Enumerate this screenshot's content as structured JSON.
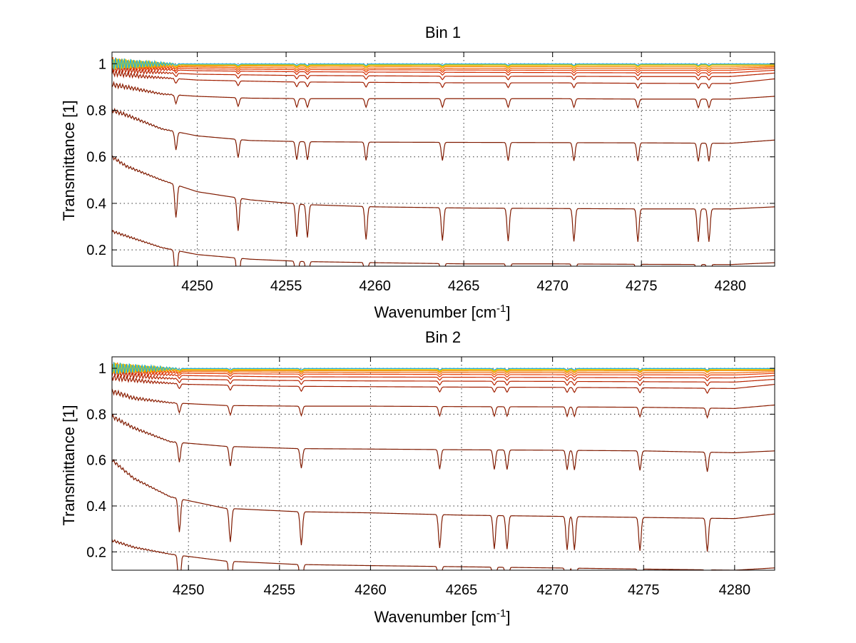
{
  "chart_data": [
    {
      "type": "line",
      "title": "Bin 1",
      "xlabel": "Wavenumber [cm",
      "xlabel_sup": "-1",
      "xlabel_end": "]",
      "ylabel": "Transmittance [1]",
      "xlim": [
        4245.2,
        4282.5
      ],
      "ylim": [
        0.13,
        1.05
      ],
      "xticks": [
        4250,
        4255,
        4260,
        4265,
        4270,
        4275,
        4280
      ],
      "xtick_labels": [
        "4250",
        "4255",
        "4260",
        "4265",
        "4270",
        "4275",
        "4280"
      ],
      "yticks": [
        0.2,
        0.4,
        0.6,
        0.8,
        1.0
      ],
      "ytick_labels": [
        "0.2",
        "0.4",
        "0.6",
        "0.8",
        "1"
      ],
      "grid": true,
      "absorption_lines": [
        4248.8,
        4252.3,
        4255.6,
        4256.2,
        4259.5,
        4263.8,
        4267.5,
        4271.2,
        4274.8,
        4278.2,
        4278.8
      ],
      "series": [
        {
          "color": "#7f1a00",
          "values": [
            [
              4245.2,
              0.28
            ],
            [
              4246,
              0.26
            ],
            [
              4248,
              0.21
            ],
            [
              4250,
              0.18
            ],
            [
              4253,
              0.16
            ],
            [
              4256,
              0.15
            ],
            [
              4260,
              0.145
            ],
            [
              4265,
              0.14
            ],
            [
              4270,
              0.14
            ],
            [
              4275,
              0.138
            ],
            [
              4280,
              0.137
            ],
            [
              4282.5,
              0.145
            ]
          ]
        },
        {
          "color": "#7f1a00",
          "values": [
            [
              4245.2,
              0.6
            ],
            [
              4246,
              0.56
            ],
            [
              4248,
              0.5
            ],
            [
              4250,
              0.45
            ],
            [
              4253,
              0.415
            ],
            [
              4256,
              0.395
            ],
            [
              4260,
              0.385
            ],
            [
              4265,
              0.38
            ],
            [
              4270,
              0.378
            ],
            [
              4275,
              0.376
            ],
            [
              4280,
              0.376
            ],
            [
              4282.5,
              0.385
            ]
          ]
        },
        {
          "color": "#7f1a00",
          "values": [
            [
              4245.2,
              0.8
            ],
            [
              4246,
              0.78
            ],
            [
              4248,
              0.72
            ],
            [
              4250,
              0.69
            ],
            [
              4253,
              0.67
            ],
            [
              4256,
              0.665
            ],
            [
              4260,
              0.663
            ],
            [
              4265,
              0.662
            ],
            [
              4270,
              0.661
            ],
            [
              4275,
              0.66
            ],
            [
              4280,
              0.658
            ],
            [
              4282.5,
              0.672
            ]
          ]
        },
        {
          "color": "#8a1c00",
          "values": [
            [
              4245.2,
              0.91
            ],
            [
              4246,
              0.9
            ],
            [
              4248,
              0.87
            ],
            [
              4250,
              0.86
            ],
            [
              4253,
              0.852
            ],
            [
              4256,
              0.85
            ],
            [
              4260,
              0.85
            ],
            [
              4265,
              0.85
            ],
            [
              4270,
              0.85
            ],
            [
              4275,
              0.848
            ],
            [
              4280,
              0.848
            ],
            [
              4282.5,
              0.86
            ]
          ]
        },
        {
          "color": "#a01e00",
          "values": [
            [
              4245.2,
              0.96
            ],
            [
              4247,
              0.945
            ],
            [
              4250,
              0.93
            ],
            [
              4255,
              0.922
            ],
            [
              4260,
              0.92
            ],
            [
              4265,
              0.918
            ],
            [
              4270,
              0.918
            ],
            [
              4275,
              0.916
            ],
            [
              4280,
              0.915
            ],
            [
              4282.5,
              0.935
            ]
          ]
        },
        {
          "color": "#b82400",
          "values": [
            [
              4245.2,
              0.98
            ],
            [
              4247,
              0.965
            ],
            [
              4250,
              0.955
            ],
            [
              4255,
              0.95
            ],
            [
              4260,
              0.948
            ],
            [
              4265,
              0.946
            ],
            [
              4270,
              0.946
            ],
            [
              4275,
              0.945
            ],
            [
              4280,
              0.945
            ],
            [
              4282.5,
              0.96
            ]
          ]
        },
        {
          "color": "#d02a00",
          "values": [
            [
              4245.2,
              0.99
            ],
            [
              4247,
              0.978
            ],
            [
              4250,
              0.97
            ],
            [
              4255,
              0.966
            ],
            [
              4260,
              0.964
            ],
            [
              4265,
              0.963
            ],
            [
              4270,
              0.962
            ],
            [
              4275,
              0.961
            ],
            [
              4280,
              0.961
            ],
            [
              4282.5,
              0.972
            ]
          ]
        },
        {
          "color": "#e83a00",
          "values": [
            [
              4245.2,
              1.0
            ],
            [
              4247,
              0.985
            ],
            [
              4250,
              0.978
            ],
            [
              4255,
              0.975
            ],
            [
              4260,
              0.974
            ],
            [
              4265,
              0.973
            ],
            [
              4270,
              0.972
            ],
            [
              4275,
              0.972
            ],
            [
              4280,
              0.972
            ],
            [
              4282.5,
              0.98
            ]
          ]
        },
        {
          "color": "#f06000",
          "values": [
            [
              4245.2,
              1.01
            ],
            [
              4247,
              0.99
            ],
            [
              4250,
              0.985
            ],
            [
              4255,
              0.982
            ],
            [
              4260,
              0.981
            ],
            [
              4265,
              0.98
            ],
            [
              4270,
              0.98
            ],
            [
              4275,
              0.98
            ],
            [
              4280,
              0.98
            ],
            [
              4282.5,
              0.986
            ]
          ]
        },
        {
          "color": "#f08800",
          "values": [
            [
              4245.2,
              1.0
            ],
            [
              4247,
              0.993
            ],
            [
              4250,
              0.99
            ],
            [
              4260,
              0.988
            ],
            [
              4270,
              0.987
            ],
            [
              4280,
              0.987
            ],
            [
              4282.5,
              0.99
            ]
          ]
        },
        {
          "color": "#f0b000",
          "values": [
            [
              4245.2,
              1.0
            ],
            [
              4250,
              0.994
            ],
            [
              4260,
              0.993
            ],
            [
              4270,
              0.992
            ],
            [
              4282.5,
              0.994
            ]
          ]
        },
        {
          "color": "#e0d000",
          "values": [
            [
              4245.2,
              1.0
            ],
            [
              4250,
              0.997
            ],
            [
              4260,
              0.996
            ],
            [
              4270,
              0.996
            ],
            [
              4282.5,
              0.997
            ]
          ]
        },
        {
          "color": "#20b0e0",
          "values": [
            [
              4245.2,
              1.0
            ],
            [
              4250,
              0.999
            ],
            [
              4260,
              0.999
            ],
            [
              4270,
              0.999
            ],
            [
              4282.5,
              0.999
            ]
          ]
        }
      ]
    },
    {
      "type": "line",
      "title": "Bin 2",
      "xlabel": "Wavenumber [cm",
      "xlabel_sup": "-1",
      "xlabel_end": "]",
      "ylabel": "Transmittance [1]",
      "xlim": [
        4245.8,
        4282.2
      ],
      "ylim": [
        0.12,
        1.05
      ],
      "xticks": [
        4250,
        4255,
        4260,
        4265,
        4270,
        4275,
        4280
      ],
      "xtick_labels": [
        "4250",
        "4255",
        "4260",
        "4265",
        "4270",
        "4275",
        "4280"
      ],
      "yticks": [
        0.2,
        0.4,
        0.6,
        0.8,
        1.0
      ],
      "ytick_labels": [
        "0.2",
        "0.4",
        "0.6",
        "0.8",
        "1"
      ],
      "grid": true,
      "absorption_lines": [
        4249.5,
        4252.3,
        4256.2,
        4263.8,
        4266.8,
        4267.5,
        4270.8,
        4271.2,
        4274.8,
        4278.5
      ],
      "series": [
        {
          "color": "#7f1a00",
          "values": [
            [
              4245.8,
              0.25
            ],
            [
              4247,
              0.22
            ],
            [
              4249,
              0.19
            ],
            [
              4252,
              0.16
            ],
            [
              4256,
              0.145
            ],
            [
              4260,
              0.14
            ],
            [
              4265,
              0.135
            ],
            [
              4270,
              0.13
            ],
            [
              4275,
              0.125
            ],
            [
              4280,
              0.12
            ],
            [
              4282.2,
              0.13
            ]
          ]
        },
        {
          "color": "#7f1a00",
          "values": [
            [
              4245.8,
              0.6
            ],
            [
              4247,
              0.52
            ],
            [
              4249,
              0.44
            ],
            [
              4252,
              0.39
            ],
            [
              4256,
              0.375
            ],
            [
              4260,
              0.37
            ],
            [
              4265,
              0.36
            ],
            [
              4270,
              0.355
            ],
            [
              4275,
              0.35
            ],
            [
              4280,
              0.345
            ],
            [
              4282.2,
              0.365
            ]
          ]
        },
        {
          "color": "#7f1a00",
          "values": [
            [
              4245.8,
              0.79
            ],
            [
              4247,
              0.74
            ],
            [
              4249,
              0.68
            ],
            [
              4252,
              0.66
            ],
            [
              4256,
              0.65
            ],
            [
              4260,
              0.648
            ],
            [
              4265,
              0.645
            ],
            [
              4270,
              0.643
            ],
            [
              4275,
              0.64
            ],
            [
              4280,
              0.632
            ],
            [
              4282.2,
              0.64
            ]
          ]
        },
        {
          "color": "#8a1c00",
          "values": [
            [
              4245.8,
              0.9
            ],
            [
              4247,
              0.87
            ],
            [
              4249,
              0.85
            ],
            [
              4252,
              0.838
            ],
            [
              4256,
              0.835
            ],
            [
              4260,
              0.835
            ],
            [
              4265,
              0.833
            ],
            [
              4270,
              0.832
            ],
            [
              4275,
              0.83
            ],
            [
              4280,
              0.825
            ],
            [
              4282.2,
              0.84
            ]
          ]
        },
        {
          "color": "#a01e00",
          "values": [
            [
              4245.8,
              0.96
            ],
            [
              4248,
              0.94
            ],
            [
              4250,
              0.93
            ],
            [
              4255,
              0.922
            ],
            [
              4260,
              0.92
            ],
            [
              4265,
              0.918
            ],
            [
              4270,
              0.917
            ],
            [
              4275,
              0.915
            ],
            [
              4280,
              0.912
            ],
            [
              4282.2,
              0.93
            ]
          ]
        },
        {
          "color": "#b82400",
          "values": [
            [
              4245.8,
              0.98
            ],
            [
              4248,
              0.96
            ],
            [
              4250,
              0.952
            ],
            [
              4255,
              0.947
            ],
            [
              4260,
              0.945
            ],
            [
              4270,
              0.943
            ],
            [
              4280,
              0.94
            ],
            [
              4282.2,
              0.952
            ]
          ]
        },
        {
          "color": "#d02a00",
          "values": [
            [
              4245.8,
              0.99
            ],
            [
              4248,
              0.975
            ],
            [
              4250,
              0.968
            ],
            [
              4255,
              0.963
            ],
            [
              4260,
              0.962
            ],
            [
              4270,
              0.96
            ],
            [
              4280,
              0.958
            ],
            [
              4282.2,
              0.968
            ]
          ]
        },
        {
          "color": "#e83a00",
          "values": [
            [
              4245.8,
              1.0
            ],
            [
              4248,
              0.985
            ],
            [
              4250,
              0.978
            ],
            [
              4255,
              0.975
            ],
            [
              4260,
              0.974
            ],
            [
              4270,
              0.972
            ],
            [
              4280,
              0.971
            ],
            [
              4282.2,
              0.978
            ]
          ]
        },
        {
          "color": "#f06000",
          "values": [
            [
              4245.8,
              1.01
            ],
            [
              4248,
              0.99
            ],
            [
              4250,
              0.985
            ],
            [
              4260,
              0.982
            ],
            [
              4270,
              0.981
            ],
            [
              4280,
              0.98
            ],
            [
              4282.2,
              0.985
            ]
          ]
        },
        {
          "color": "#f08800",
          "values": [
            [
              4245.8,
              1.0
            ],
            [
              4250,
              0.99
            ],
            [
              4260,
              0.989
            ],
            [
              4270,
              0.988
            ],
            [
              4282.2,
              0.99
            ]
          ]
        },
        {
          "color": "#f0b000",
          "values": [
            [
              4245.8,
              1.0
            ],
            [
              4250,
              0.994
            ],
            [
              4260,
              0.993
            ],
            [
              4270,
              0.993
            ],
            [
              4282.2,
              0.994
            ]
          ]
        },
        {
          "color": "#e0d000",
          "values": [
            [
              4245.8,
              1.0
            ],
            [
              4250,
              0.997
            ],
            [
              4260,
              0.997
            ],
            [
              4270,
              0.996
            ],
            [
              4282.2,
              0.997
            ]
          ]
        },
        {
          "color": "#20b0e0",
          "values": [
            [
              4245.8,
              1.0
            ],
            [
              4250,
              0.999
            ],
            [
              4260,
              0.999
            ],
            [
              4270,
              0.999
            ],
            [
              4282.2,
              0.999
            ]
          ]
        }
      ]
    }
  ]
}
